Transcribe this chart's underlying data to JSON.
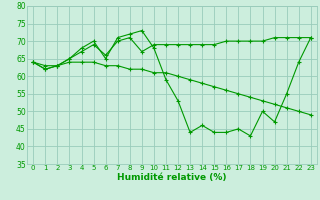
{
  "xlabel": "Humidité relative (%)",
  "xlim": [
    -0.5,
    23.5
  ],
  "ylim": [
    35,
    80
  ],
  "yticks": [
    35,
    40,
    45,
    50,
    55,
    60,
    65,
    70,
    75,
    80
  ],
  "xticks": [
    0,
    1,
    2,
    3,
    4,
    5,
    6,
    7,
    8,
    9,
    10,
    11,
    12,
    13,
    14,
    15,
    16,
    17,
    18,
    19,
    20,
    21,
    22,
    23
  ],
  "bg_color": "#cceedd",
  "grid_color": "#99ccbb",
  "line_color": "#009900",
  "line1": [
    64,
    62,
    63,
    65,
    68,
    70,
    65,
    71,
    72,
    73,
    68,
    59,
    53,
    44,
    46,
    44,
    44,
    45,
    43,
    50,
    47,
    55,
    64,
    71
  ],
  "line2": [
    64,
    62,
    63,
    65,
    67,
    69,
    66,
    70,
    71,
    67,
    69,
    69,
    69,
    69,
    69,
    69,
    70,
    70,
    70,
    70,
    71,
    71,
    71,
    71
  ],
  "line3": [
    64,
    63,
    63,
    64,
    64,
    64,
    63,
    63,
    62,
    62,
    61,
    61,
    60,
    59,
    58,
    57,
    56,
    55,
    54,
    53,
    52,
    51,
    50,
    49
  ]
}
